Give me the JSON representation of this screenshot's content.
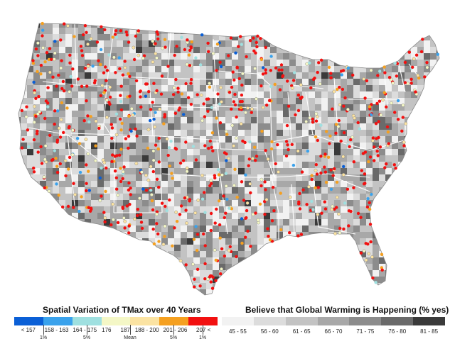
{
  "legend_left": {
    "title": "Spatial Variation of TMax over 40 Years",
    "colors": [
      "#0a5fd6",
      "#3aa2ec",
      "#9fe0e0",
      "#f4f7c6",
      "#fbe3a2",
      "#f5a020",
      "#f21010"
    ],
    "labels": [
      "< 157",
      "158 - 163",
      "164 - 175",
      "176",
      "187",
      "188 - 200",
      "201 - 206",
      "207 <"
    ],
    "percentiles": [
      "1%",
      "5%",
      "Mean",
      "5%",
      "1%"
    ]
  },
  "legend_right": {
    "title": "Believe that Global Warming is Happening (% yes)",
    "colors": [
      "#f2f2f2",
      "#dcdcdc",
      "#c3c3c3",
      "#a8a8a8",
      "#8c8c8c",
      "#6a6a6a",
      "#3a3a3a"
    ],
    "labels": [
      "45 - 55",
      "56 - 60",
      "61 - 65",
      "66 - 70",
      "71 - 75",
      "76 - 80",
      "81 - 85"
    ]
  },
  "map": {
    "land_color": "#c8c8c8",
    "border_color": "#ffffff"
  }
}
